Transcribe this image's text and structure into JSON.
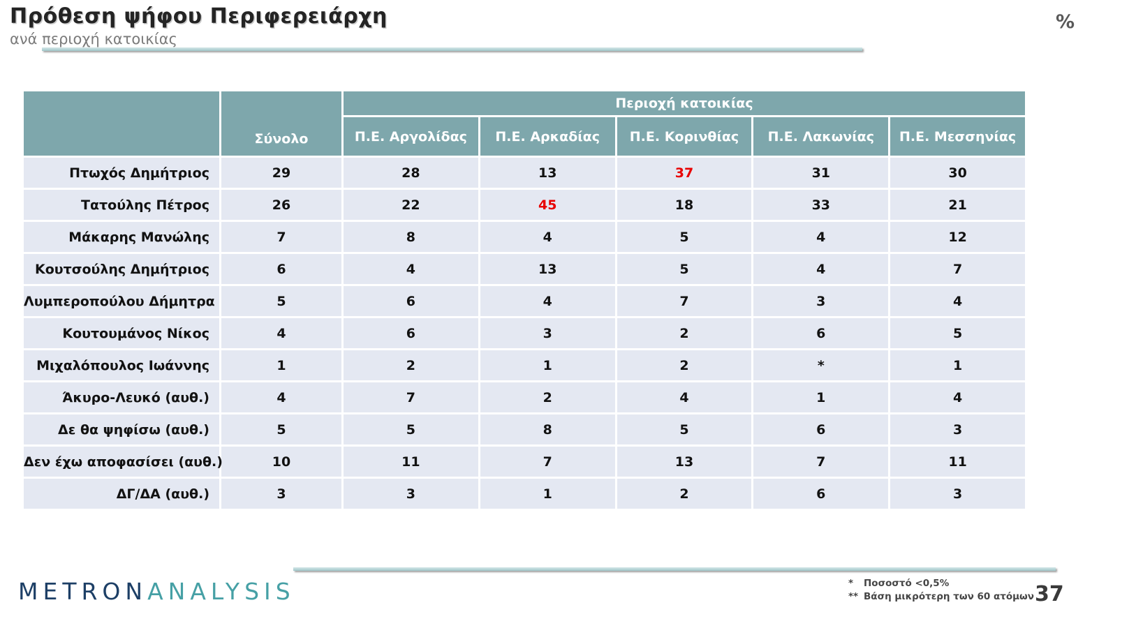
{
  "chart_data": {
    "type": "table",
    "title": "Πρόθεση ψήφου Περιφερειάρχη",
    "subtitle": "ανά περιοχή κατοικίας",
    "unit": "%",
    "column_group_label": "Περιοχή κατοικίας",
    "total_column_label": "Σύνολο",
    "region_columns": [
      "Π.Ε. Αργολίδας",
      "Π.Ε. Αρκαδίας",
      "Π.Ε. Κορινθίας",
      "Π.Ε. Λακωνίας",
      "Π.Ε. Μεσσηνίας"
    ],
    "rows": [
      {
        "label": "Πτωχός Δημήτριος",
        "values": [
          "29",
          "28",
          "13",
          "37",
          "31",
          "30"
        ],
        "red_indices": [
          3
        ]
      },
      {
        "label": "Τατούλης Πέτρος",
        "values": [
          "26",
          "22",
          "45",
          "18",
          "33",
          "21"
        ],
        "red_indices": [
          2
        ]
      },
      {
        "label": "Μάκαρης Μανώλης",
        "values": [
          "7",
          "8",
          "4",
          "5",
          "4",
          "12"
        ],
        "red_indices": []
      },
      {
        "label": "Κουτσούλης Δημήτριος",
        "values": [
          "6",
          "4",
          "13",
          "5",
          "4",
          "7"
        ],
        "red_indices": []
      },
      {
        "label": "Λυμπεροπούλου Δήμητρα",
        "values": [
          "5",
          "6",
          "4",
          "7",
          "3",
          "4"
        ],
        "red_indices": []
      },
      {
        "label": "Κουτουμάνος Νίκος",
        "values": [
          "4",
          "6",
          "3",
          "2",
          "6",
          "5"
        ],
        "red_indices": []
      },
      {
        "label": "Μιχαλόπουλος Ιωάννης",
        "values": [
          "1",
          "2",
          "1",
          "2",
          "*",
          "1"
        ],
        "red_indices": []
      },
      {
        "label": "Άκυρο-Λευκό (αυθ.)",
        "values": [
          "4",
          "7",
          "2",
          "4",
          "1",
          "4"
        ],
        "red_indices": []
      },
      {
        "label": "Δε θα ψηφίσω (αυθ.)",
        "values": [
          "5",
          "5",
          "8",
          "5",
          "6",
          "3"
        ],
        "red_indices": []
      },
      {
        "label": "Δεν έχω αποφασίσει (αυθ.)",
        "values": [
          "10",
          "11",
          "7",
          "13",
          "7",
          "11"
        ],
        "red_indices": []
      },
      {
        "label": "ΔΓ/ΔΑ (αυθ.)",
        "values": [
          "3",
          "3",
          "1",
          "2",
          "6",
          "3"
        ],
        "red_indices": []
      }
    ]
  },
  "footer": {
    "logo_metron": "METRON",
    "logo_analysis": "ANALYSIS",
    "page_number": "37",
    "footnotes": [
      {
        "marker": "*",
        "text": "Ποσοστό <0,5%"
      },
      {
        "marker": "**",
        "text": "Βάση μικρότερη των 60 ατόμων"
      }
    ]
  },
  "colors": {
    "header_bg": "#7ea7ac",
    "row_bg": "#e4e8f2",
    "red": "#e80000",
    "accent_line": "#a9ced1",
    "logo_navy": "#1d3f66",
    "logo_teal": "#46a0a5"
  }
}
